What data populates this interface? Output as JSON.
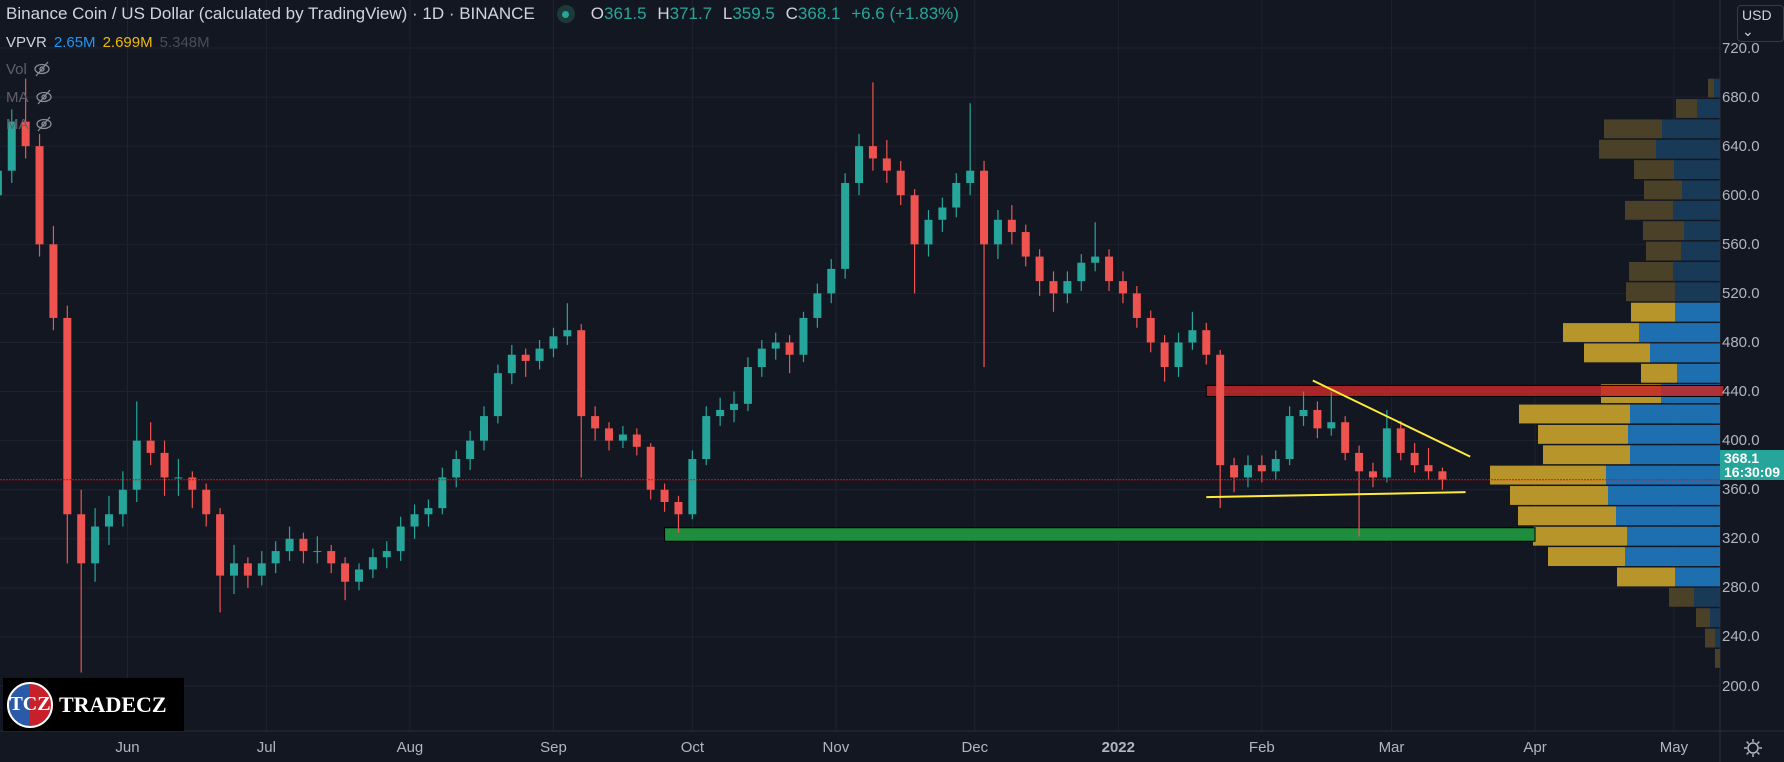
{
  "header": {
    "title": "Binance Coin / US Dollar (calculated by TradingView) · 1D · BINANCE",
    "ohlc": {
      "o_label": "O",
      "o": "361.5",
      "h_label": "H",
      "h": "371.7",
      "l_label": "L",
      "l": "359.5",
      "c_label": "C",
      "c": "368.1",
      "change": "+6.6 (+1.83%)"
    },
    "status_color": "#26a69a"
  },
  "vpvr": {
    "label": "VPVR",
    "up": "2.65M",
    "down": "2.699M",
    "total": "5.348M",
    "up_color": "#2196f3",
    "down_color": "#f0b90b"
  },
  "indicators": [
    {
      "label": "Vol",
      "icon": "eye-off-icon"
    },
    {
      "label": "MA",
      "icon": "eye-off-icon"
    },
    {
      "label": "MA",
      "icon": "eye-off-icon"
    }
  ],
  "currency": "USD",
  "last_price": {
    "value": "368.1",
    "countdown": "16:30:09"
  },
  "logo": {
    "mark": "TCZ",
    "text": "TradeCZ"
  },
  "colors": {
    "background": "#131722",
    "up": "#26a69a",
    "down": "#ef5350",
    "grid": "#1f2330",
    "vp_up": "#1e6faf",
    "vp_down": "#b8952a",
    "vp_up_dim": "#193a57",
    "vp_down_dim": "#4a4128"
  },
  "chart_data": {
    "type": "candlestick",
    "ylim": [
      180,
      760
    ],
    "price_ticks": [
      "720.0",
      "680.0",
      "640.0",
      "600.0",
      "560.0",
      "520.0",
      "480.0",
      "440.0",
      "400.0",
      "360.0",
      "320.0",
      "280.0",
      "240.0",
      "200.0"
    ],
    "time_ticks": [
      {
        "label": "Jun",
        "date": "2021-06-01"
      },
      {
        "label": "Jul",
        "date": "2021-07-01"
      },
      {
        "label": "Aug",
        "date": "2021-08-01"
      },
      {
        "label": "Sep",
        "date": "2021-09-01"
      },
      {
        "label": "Oct",
        "date": "2021-10-01"
      },
      {
        "label": "Nov",
        "date": "2021-11-01"
      },
      {
        "label": "Dec",
        "date": "2021-12-01"
      },
      {
        "label": "2022",
        "date": "2022-01-01"
      },
      {
        "label": "Feb",
        "date": "2022-02-01"
      },
      {
        "label": "Mar",
        "date": "2022-03-01"
      },
      {
        "label": "Apr",
        "date": "2022-04-01"
      },
      {
        "label": "May",
        "date": "2022-05-01"
      }
    ],
    "grid": true,
    "candles": [
      [
        "2021-05-04",
        600,
        640,
        590,
        620
      ],
      [
        "2021-05-07",
        620,
        670,
        610,
        660
      ],
      [
        "2021-05-10",
        660,
        695,
        630,
        640
      ],
      [
        "2021-05-13",
        640,
        650,
        550,
        560
      ],
      [
        "2021-05-16",
        560,
        575,
        490,
        500
      ],
      [
        "2021-05-19",
        500,
        510,
        300,
        340
      ],
      [
        "2021-05-22",
        340,
        360,
        211,
        300
      ],
      [
        "2021-05-25",
        300,
        345,
        285,
        330
      ],
      [
        "2021-05-28",
        330,
        355,
        315,
        340
      ],
      [
        "2021-05-31",
        340,
        375,
        330,
        360
      ],
      [
        "2021-06-03",
        360,
        432,
        350,
        400
      ],
      [
        "2021-06-06",
        400,
        415,
        380,
        390
      ],
      [
        "2021-06-09",
        390,
        400,
        355,
        370
      ],
      [
        "2021-06-12",
        370,
        385,
        355,
        370
      ],
      [
        "2021-06-15",
        370,
        375,
        345,
        360
      ],
      [
        "2021-06-18",
        360,
        365,
        330,
        340
      ],
      [
        "2021-06-21",
        340,
        345,
        260,
        290
      ],
      [
        "2021-06-24",
        290,
        315,
        275,
        300
      ],
      [
        "2021-06-27",
        300,
        305,
        280,
        290
      ],
      [
        "2021-06-30",
        290,
        310,
        282,
        300
      ],
      [
        "2021-07-03",
        300,
        318,
        292,
        310
      ],
      [
        "2021-07-06",
        310,
        330,
        302,
        320
      ],
      [
        "2021-07-09",
        320,
        325,
        300,
        310
      ],
      [
        "2021-07-12",
        310,
        322,
        300,
        310
      ],
      [
        "2021-07-15",
        310,
        315,
        292,
        300
      ],
      [
        "2021-07-18",
        300,
        305,
        270,
        285
      ],
      [
        "2021-07-21",
        285,
        300,
        278,
        295
      ],
      [
        "2021-07-24",
        295,
        312,
        288,
        305
      ],
      [
        "2021-07-27",
        305,
        318,
        296,
        310
      ],
      [
        "2021-07-30",
        310,
        338,
        302,
        330
      ],
      [
        "2021-08-02",
        330,
        348,
        320,
        340
      ],
      [
        "2021-08-05",
        340,
        352,
        330,
        345
      ],
      [
        "2021-08-08",
        345,
        378,
        340,
        370
      ],
      [
        "2021-08-11",
        370,
        392,
        362,
        385
      ],
      [
        "2021-08-14",
        385,
        408,
        376,
        400
      ],
      [
        "2021-08-17",
        400,
        428,
        392,
        420
      ],
      [
        "2021-08-20",
        420,
        462,
        414,
        455
      ],
      [
        "2021-08-23",
        455,
        478,
        446,
        470
      ],
      [
        "2021-08-26",
        470,
        475,
        452,
        465
      ],
      [
        "2021-08-29",
        465,
        482,
        458,
        475
      ],
      [
        "2021-09-01",
        475,
        492,
        468,
        485
      ],
      [
        "2021-09-04",
        485,
        512,
        478,
        490
      ],
      [
        "2021-09-07",
        490,
        495,
        370,
        420
      ],
      [
        "2021-09-10",
        420,
        428,
        400,
        410
      ],
      [
        "2021-09-13",
        410,
        415,
        392,
        400
      ],
      [
        "2021-09-16",
        400,
        412,
        394,
        405
      ],
      [
        "2021-09-19",
        405,
        410,
        388,
        395
      ],
      [
        "2021-09-22",
        395,
        398,
        352,
        360
      ],
      [
        "2021-09-25",
        360,
        365,
        342,
        350
      ],
      [
        "2021-09-28",
        350,
        355,
        325,
        340
      ],
      [
        "2021-10-01",
        340,
        392,
        336,
        385
      ],
      [
        "2021-10-04",
        385,
        428,
        380,
        420
      ],
      [
        "2021-10-07",
        420,
        435,
        412,
        425
      ],
      [
        "2021-10-10",
        425,
        440,
        415,
        430
      ],
      [
        "2021-10-13",
        430,
        468,
        424,
        460
      ],
      [
        "2021-10-16",
        460,
        482,
        452,
        475
      ],
      [
        "2021-10-19",
        475,
        488,
        466,
        480
      ],
      [
        "2021-10-22",
        480,
        486,
        455,
        470
      ],
      [
        "2021-10-25",
        470,
        505,
        464,
        500
      ],
      [
        "2021-10-28",
        500,
        528,
        492,
        520
      ],
      [
        "2021-10-31",
        520,
        548,
        512,
        540
      ],
      [
        "2021-11-03",
        540,
        618,
        532,
        610
      ],
      [
        "2021-11-06",
        610,
        650,
        600,
        640
      ],
      [
        "2021-11-09",
        640,
        692,
        620,
        630
      ],
      [
        "2021-11-12",
        630,
        645,
        610,
        620
      ],
      [
        "2021-11-15",
        620,
        628,
        592,
        600
      ],
      [
        "2021-11-18",
        600,
        605,
        520,
        560
      ],
      [
        "2021-11-21",
        560,
        588,
        550,
        580
      ],
      [
        "2021-11-24",
        580,
        598,
        570,
        590
      ],
      [
        "2021-11-27",
        590,
        618,
        582,
        610
      ],
      [
        "2021-11-30",
        610,
        675,
        600,
        620
      ],
      [
        "2021-12-03",
        620,
        628,
        460,
        560
      ],
      [
        "2021-12-06",
        560,
        588,
        548,
        580
      ],
      [
        "2021-12-09",
        580,
        592,
        560,
        570
      ],
      [
        "2021-12-12",
        570,
        576,
        542,
        550
      ],
      [
        "2021-12-15",
        550,
        556,
        518,
        530
      ],
      [
        "2021-12-18",
        530,
        538,
        505,
        520
      ],
      [
        "2021-12-21",
        520,
        538,
        512,
        530
      ],
      [
        "2021-12-24",
        530,
        552,
        522,
        545
      ],
      [
        "2021-12-27",
        545,
        578,
        538,
        550
      ],
      [
        "2021-12-30",
        550,
        556,
        522,
        530
      ],
      [
        "2022-01-02",
        530,
        538,
        512,
        520
      ],
      [
        "2022-01-05",
        520,
        526,
        492,
        500
      ],
      [
        "2022-01-08",
        500,
        506,
        472,
        480
      ],
      [
        "2022-01-11",
        480,
        486,
        448,
        460
      ],
      [
        "2022-01-14",
        460,
        488,
        452,
        480
      ],
      [
        "2022-01-17",
        480,
        505,
        474,
        490
      ],
      [
        "2022-01-20",
        490,
        496,
        462,
        470
      ],
      [
        "2022-01-23",
        470,
        474,
        345,
        380
      ],
      [
        "2022-01-26",
        380,
        386,
        358,
        370
      ],
      [
        "2022-01-29",
        370,
        388,
        362,
        380
      ],
      [
        "2022-02-01",
        380,
        388,
        366,
        375
      ],
      [
        "2022-02-04",
        375,
        392,
        368,
        385
      ],
      [
        "2022-02-07",
        385,
        428,
        380,
        420
      ],
      [
        "2022-02-10",
        420,
        440,
        412,
        425
      ],
      [
        "2022-02-13",
        425,
        432,
        402,
        410
      ],
      [
        "2022-02-16",
        410,
        440,
        404,
        415
      ],
      [
        "2022-02-19",
        415,
        420,
        384,
        390
      ],
      [
        "2022-02-22",
        390,
        396,
        322,
        375
      ],
      [
        "2022-02-25",
        375,
        382,
        362,
        370
      ],
      [
        "2022-02-28",
        370,
        425,
        366,
        410
      ],
      [
        "2022-03-03",
        410,
        416,
        384,
        390
      ],
      [
        "2022-03-06",
        390,
        398,
        374,
        380
      ],
      [
        "2022-03-09",
        380,
        394,
        368,
        375
      ],
      [
        "2022-03-12",
        375,
        378,
        360,
        368.1
      ]
    ],
    "volume_profile": {
      "top_price": 695,
      "row_size": 16.6,
      "rows": [
        [
          6,
          6,
          false
        ],
        [
          21,
          23,
          false
        ],
        [
          58,
          58,
          false
        ],
        [
          57,
          64,
          false
        ],
        [
          40,
          46,
          false
        ],
        [
          38,
          38,
          false
        ],
        [
          48,
          47,
          false
        ],
        [
          41,
          36,
          false
        ],
        [
          35,
          39,
          false
        ],
        [
          44,
          47,
          false
        ],
        [
          49,
          45,
          false
        ],
        [
          44,
          45,
          true
        ],
        [
          76,
          81,
          true
        ],
        [
          66,
          70,
          true
        ],
        [
          36,
          43,
          true
        ],
        [
          60,
          59,
          true
        ],
        [
          111,
          90,
          true
        ],
        [
          90,
          92,
          true
        ],
        [
          87,
          90,
          true
        ],
        [
          116,
          114,
          true
        ],
        [
          98,
          112,
          true
        ],
        [
          98,
          104,
          true
        ],
        [
          94,
          93,
          true
        ],
        [
          77,
          95,
          true
        ],
        [
          58,
          45,
          true
        ],
        [
          25,
          26,
          false
        ],
        [
          14,
          10,
          false
        ],
        [
          10,
          5,
          false
        ],
        [
          5,
          0,
          false
        ]
      ]
    },
    "annotations": {
      "resistance_zone": {
        "from": "2022-01-20",
        "price_high": 445,
        "price_low": 436,
        "color": "#c62828"
      },
      "support_zone": {
        "from": "2021-09-25",
        "to": "2022-04-01",
        "price_high": 329,
        "price_low": 318,
        "color": "#1e8e3e"
      },
      "trend_down": {
        "from": [
          "2022-02-12",
          449
        ],
        "to": [
          "2022-03-18",
          387
        ],
        "color": "#ffeb3b"
      },
      "trend_support": {
        "from": [
          "2022-01-20",
          354
        ],
        "to": [
          "2022-03-17",
          358
        ],
        "color": "#ffeb3b"
      },
      "last_price_line": {
        "price": 368.1,
        "color": "#ff0000"
      }
    }
  }
}
